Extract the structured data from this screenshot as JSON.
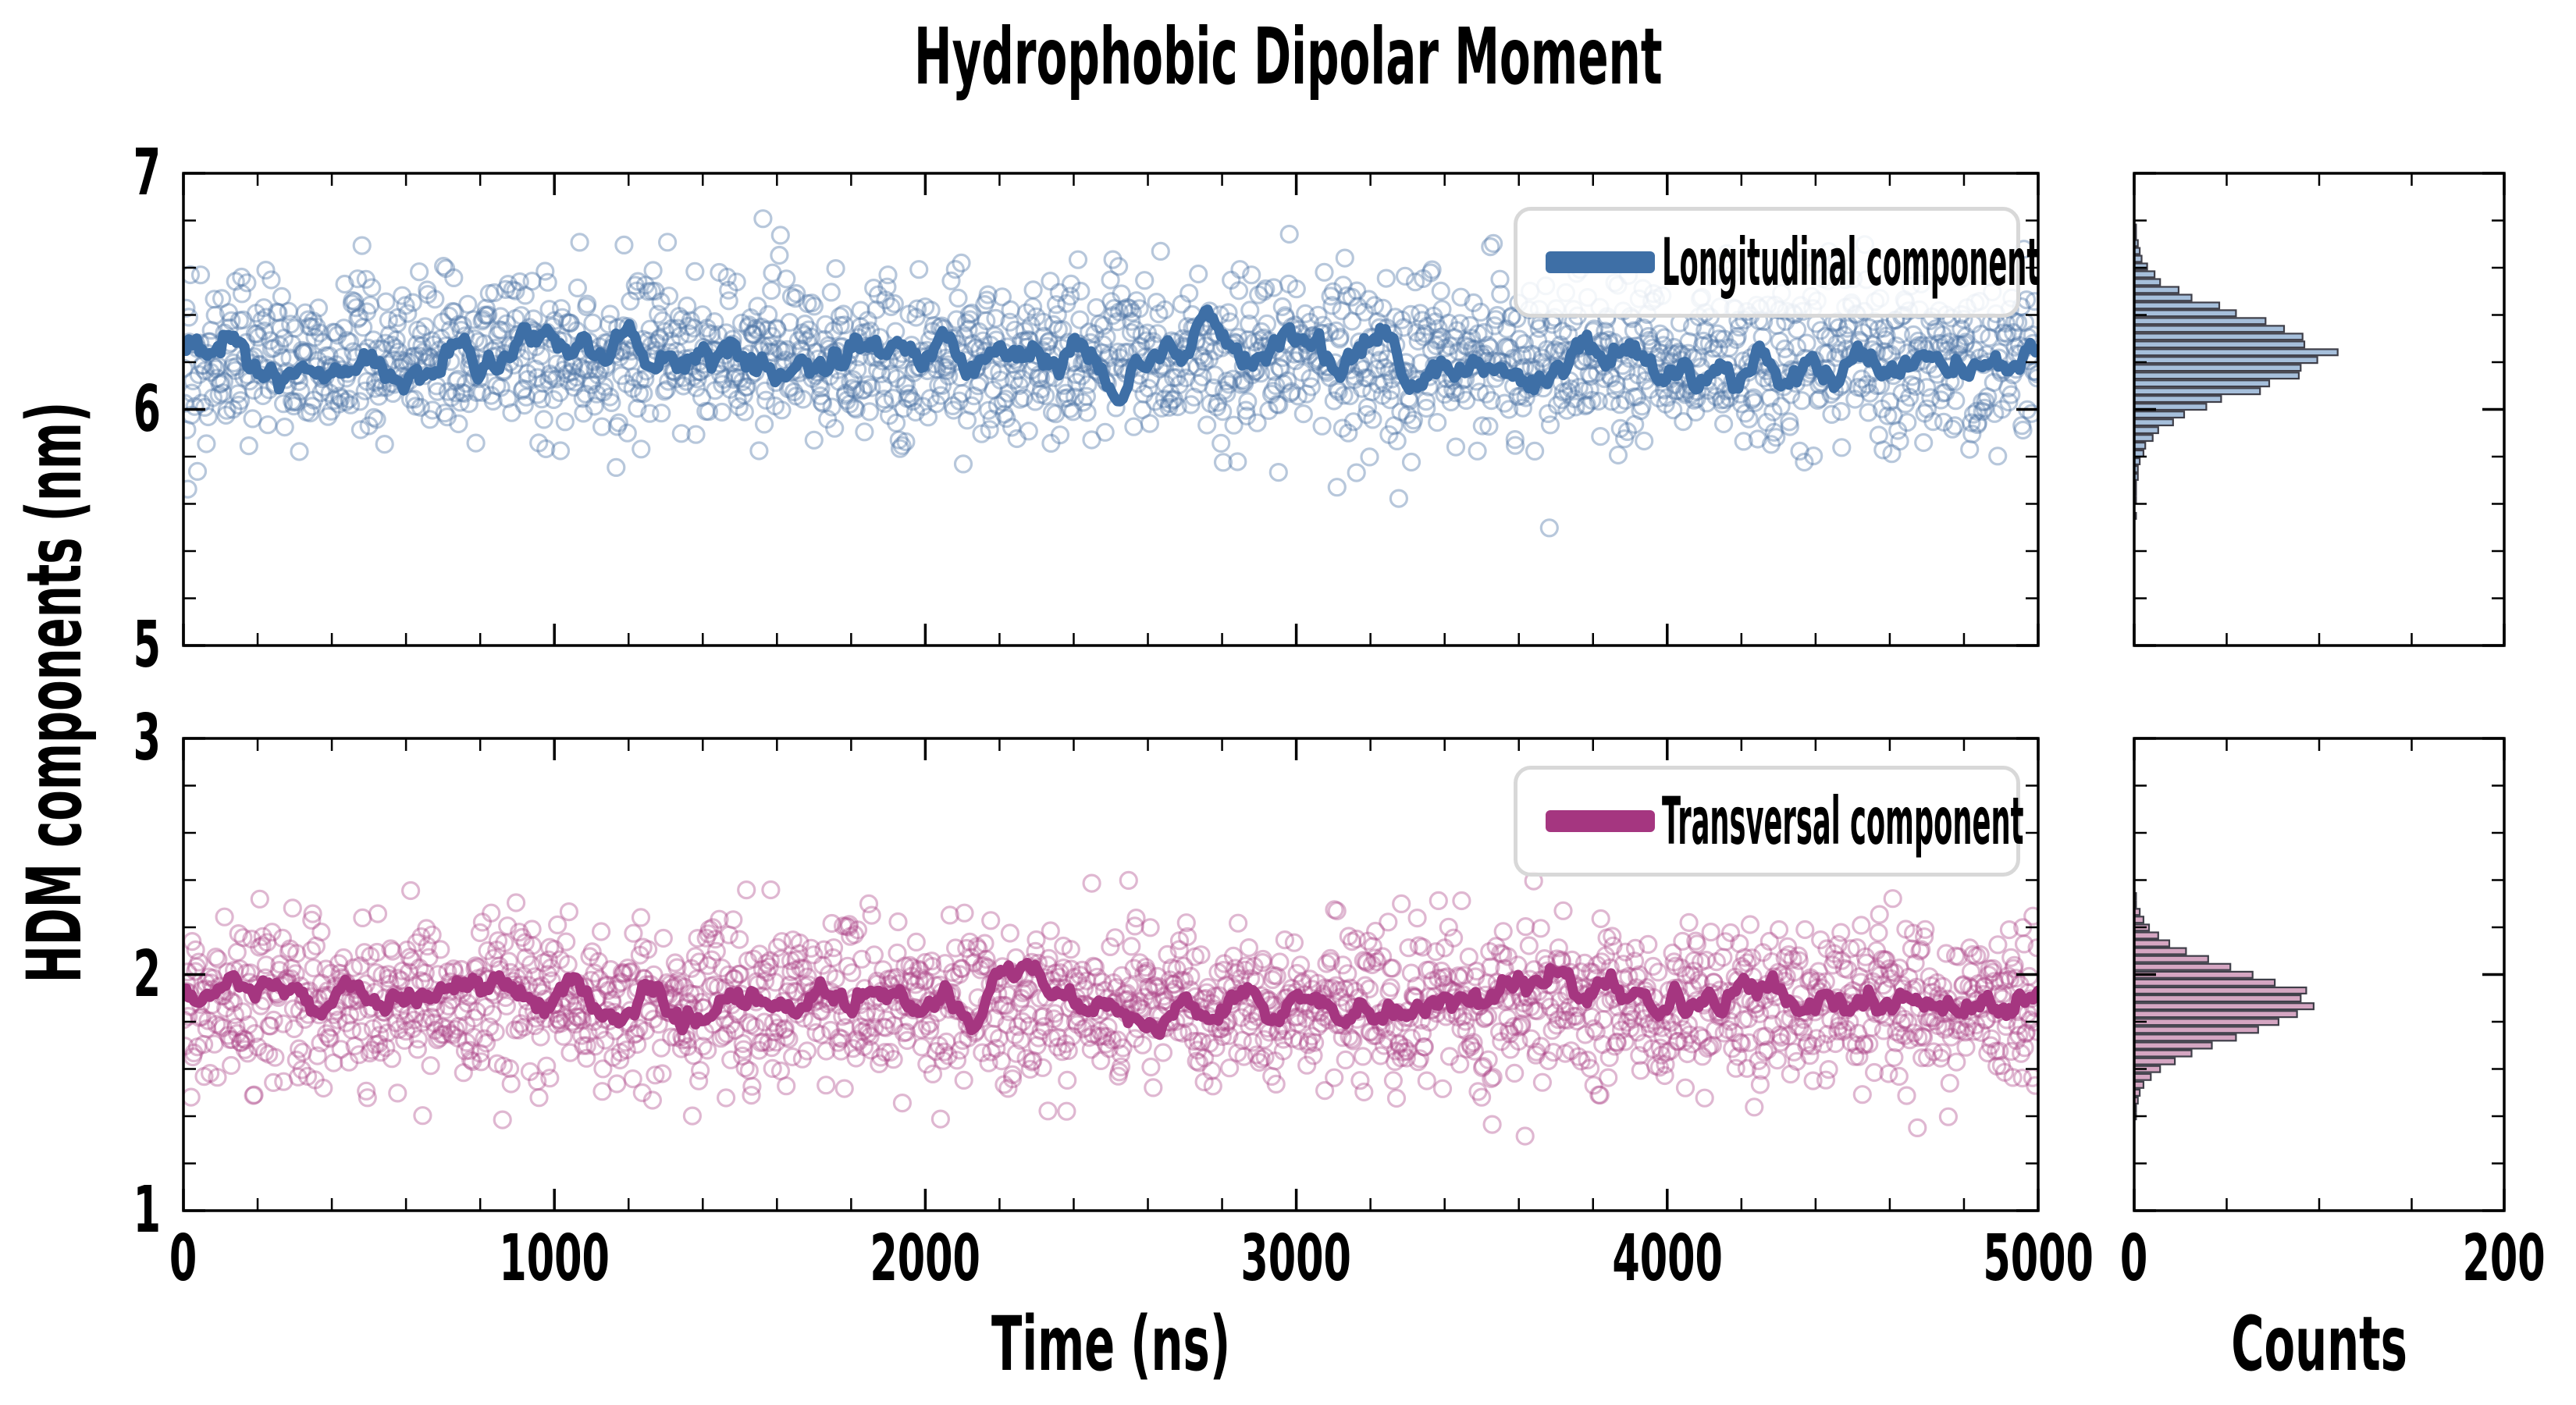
{
  "title": "Hydrophobic Dipolar Moment",
  "ylabel": "HDM components (nm)",
  "xlabel_time": "Time (ns)",
  "xlabel_counts": "Counts",
  "legends": {
    "top": "Longitudinal component",
    "bottom": "Transversal component"
  },
  "colors": {
    "longitudinal_line": "#3e6fa6",
    "longitudinal_scatter": "rgba(74,114,165,0.40)",
    "longitudinal_hist_fill": "#a6bfdb",
    "transversal_line": "#a53680",
    "transversal_scatter": "rgba(172,66,133,0.38)",
    "transversal_hist_fill": "#d5a6c2",
    "hist_edge": "#3f3f49",
    "legend_border": "#d8d8d8",
    "spine": "#000000"
  },
  "axes": {
    "time": {
      "range": [
        0,
        5000
      ],
      "major_ticks": [
        0,
        1000,
        2000,
        3000,
        4000,
        5000
      ],
      "minor_step": 200,
      "tick_labels": [
        "0",
        "1000",
        "2000",
        "3000",
        "4000",
        "5000"
      ]
    },
    "counts": {
      "range": [
        0,
        200
      ],
      "major_ticks": [
        0,
        200
      ],
      "minor_step": 50,
      "tick_labels": [
        "0",
        "200"
      ]
    },
    "top_y": {
      "range": [
        5,
        7
      ],
      "major_ticks": [
        5,
        6,
        7
      ],
      "minor_step": 0.2,
      "tick_labels": [
        "7",
        "6",
        "5"
      ]
    },
    "bottom_y": {
      "range": [
        1,
        3
      ],
      "major_ticks": [
        1,
        2,
        3
      ],
      "minor_step": 0.2,
      "tick_labels": [
        "3",
        "2",
        "1"
      ]
    }
  },
  "chart_data": [
    {
      "type": "scatter",
      "panel": "top",
      "name": "Longitudinal component",
      "x_range": [
        0,
        5000
      ],
      "n_points": 2000,
      "y_mean": 6.22,
      "y_sd": 0.17,
      "y_clip": [
        5.47,
        6.85
      ],
      "marker": "open-circle"
    },
    {
      "type": "line",
      "panel": "top",
      "name": "Longitudinal running average",
      "y_mean": 6.235,
      "y_sd_fast": 0.055,
      "y_sd_slow": 0.045,
      "y_clip": [
        5.96,
        6.5
      ]
    },
    {
      "type": "bar",
      "panel": "top-hist",
      "name": "Longitudinal histogram",
      "orientation": "horizontal",
      "xlim": [
        0,
        200
      ],
      "bin_start": 5.5,
      "bin_width": 0.033,
      "counts": [
        0,
        1,
        0,
        1,
        1,
        1,
        2,
        2,
        3,
        5,
        6,
        10,
        13,
        21,
        27,
        39,
        47,
        68,
        73,
        89,
        90,
        99,
        110,
        92,
        91,
        81,
        71,
        55,
        46,
        31,
        24,
        14,
        11,
        7,
        4,
        3,
        2,
        1,
        1,
        0
      ]
    },
    {
      "type": "scatter",
      "panel": "bottom",
      "name": "Transversal component",
      "x_range": [
        0,
        5000
      ],
      "n_points": 2000,
      "y_mean": 1.875,
      "y_sd": 0.165,
      "y_clip": [
        1.3,
        2.4
      ],
      "marker": "open-circle"
    },
    {
      "type": "line",
      "panel": "bottom",
      "name": "Transversal running average",
      "y_mean": 1.895,
      "y_sd_fast": 0.045,
      "y_sd_slow": 0.038,
      "y_clip": [
        1.7,
        2.1
      ]
    },
    {
      "type": "bar",
      "panel": "bottom-hist",
      "name": "Transversal histogram",
      "orientation": "horizontal",
      "xlim": [
        0,
        200
      ],
      "bin_start": 1.35,
      "bin_width": 0.0333,
      "counts": [
        0,
        1,
        1,
        2,
        3,
        5,
        9,
        14,
        22,
        31,
        42,
        55,
        67,
        78,
        88,
        97,
        90,
        93,
        76,
        64,
        52,
        40,
        28,
        19,
        13,
        8,
        5,
        3,
        1,
        1
      ]
    }
  ]
}
